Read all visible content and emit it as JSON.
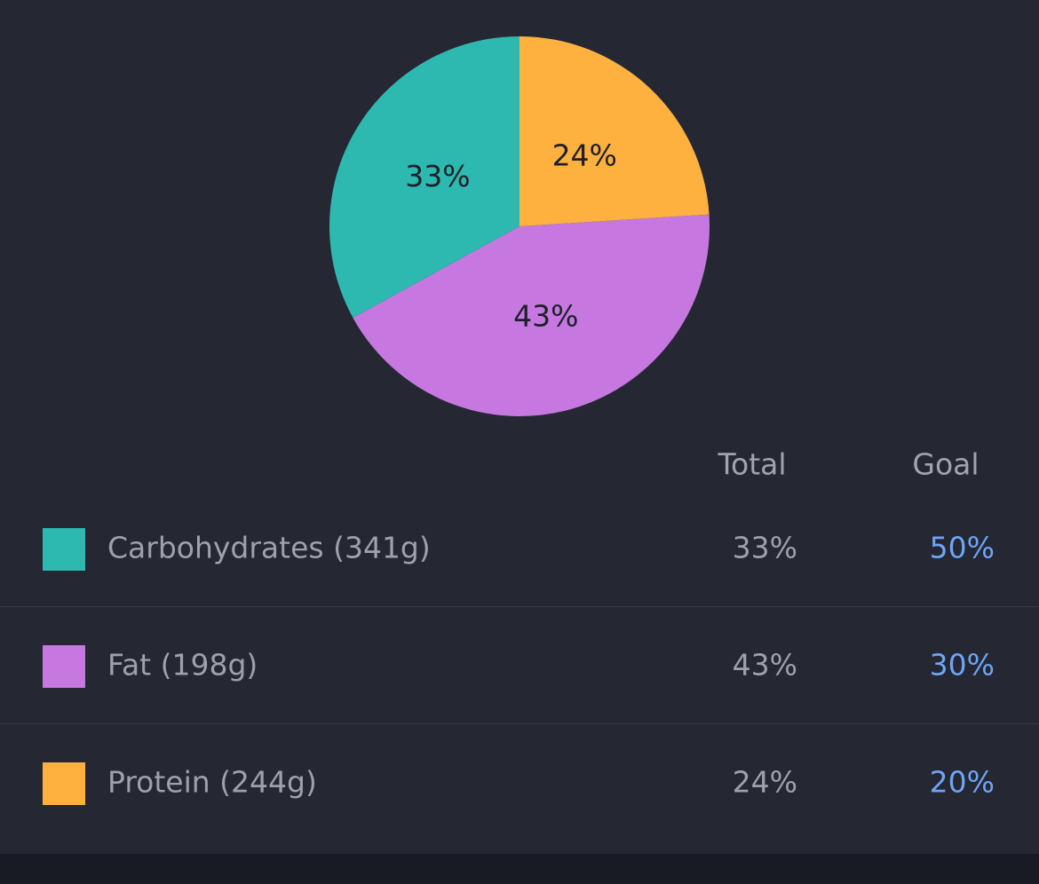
{
  "chart_data": {
    "type": "pie",
    "categories": [
      "Carbohydrates (341g)",
      "Fat (198g)",
      "Protein (244g)"
    ],
    "values": [
      33,
      43,
      24
    ],
    "value_labels": [
      "33%",
      "43%",
      "24%"
    ],
    "colors": [
      "#2db8b0",
      "#c678e0",
      "#ffb13f"
    ]
  },
  "table": {
    "headers": [
      "Total",
      "Goal"
    ],
    "goals": [
      "50%",
      "30%",
      "20%"
    ]
  }
}
